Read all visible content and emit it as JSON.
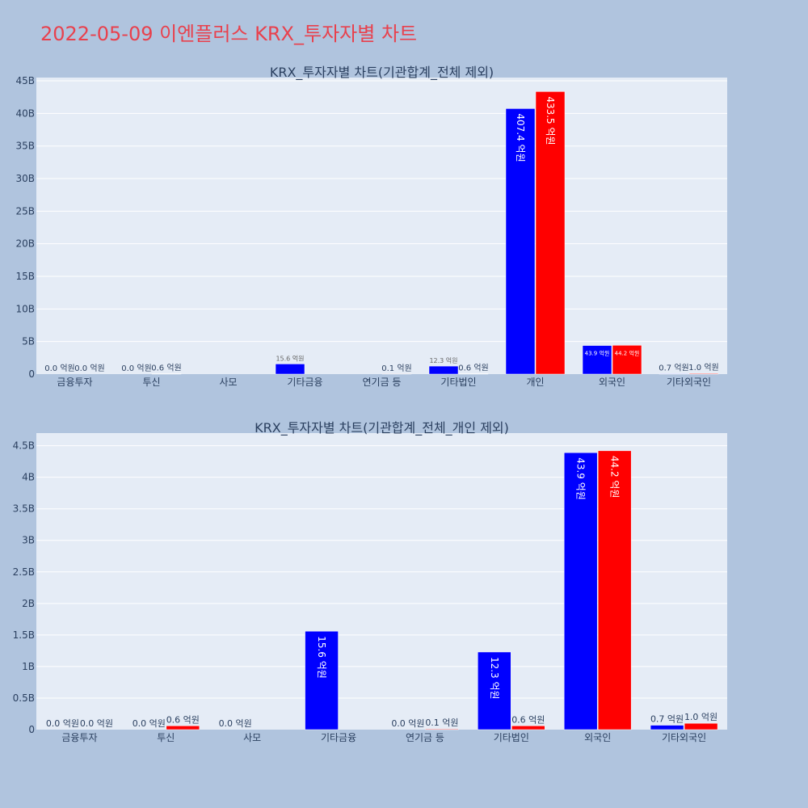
{
  "page_title": "2022-05-09 이엔플러스 KRX_투자자별 차트",
  "colors": {
    "buy": "#0000ff",
    "sell": "#ff0000",
    "page_bg": "#b0c4de",
    "plot_bg": "#e5ecf6",
    "title": "#e8414d"
  },
  "chart_data": [
    {
      "type": "bar",
      "title": "KRX_투자자별 차트(기관합계_전체 제외)",
      "categories": [
        "금융투자",
        "투신",
        "사모",
        "기타금융",
        "연기금 등",
        "기타법인",
        "개인",
        "외국인",
        "기타외국인"
      ],
      "ylim": [
        0,
        45.5
      ],
      "y_ticks": [
        0,
        5,
        10,
        15,
        20,
        25,
        30,
        35,
        40,
        45
      ],
      "y_tick_labels": [
        "0",
        "5B",
        "10B",
        "15B",
        "20B",
        "25B",
        "30B",
        "35B",
        "40B",
        "45B"
      ],
      "series": [
        {
          "values": [
            0.0,
            0.0,
            null,
            1.56,
            0.0,
            1.23,
            40.74,
            4.39,
            0.07
          ],
          "labels": [
            "0.0 억원",
            "0.0 억원",
            "",
            "15.6 억원",
            "",
            "12.3 억원",
            "407.4 억원",
            "43.9 억원",
            "0.7 억원"
          ]
        },
        {
          "values": [
            0.0,
            0.06,
            null,
            null,
            0.01,
            0.06,
            43.35,
            4.42,
            0.1
          ],
          "labels": [
            "0.0 억원",
            "0.6 억원",
            "",
            "",
            "0.1 억원",
            "0.6 억원",
            "433.5 억원",
            "44.2 억원",
            "1.0 억원"
          ]
        }
      ],
      "grid": true
    },
    {
      "type": "bar",
      "title": "KRX_투자자별 차트(기관합계_전체_개인 제외)",
      "categories": [
        "금융투자",
        "투신",
        "사모",
        "기타금융",
        "연기금 등",
        "기타법인",
        "외국인",
        "기타외국인"
      ],
      "ylim": [
        0,
        4.7
      ],
      "y_ticks": [
        0,
        0.5,
        1,
        1.5,
        2,
        2.5,
        3,
        3.5,
        4,
        4.5
      ],
      "y_tick_labels": [
        "0",
        "0.5B",
        "1B",
        "1.5B",
        "2B",
        "2.5B",
        "3B",
        "3.5B",
        "4B",
        "4.5B"
      ],
      "series": [
        {
          "values": [
            0.0,
            0.0,
            0.0,
            1.56,
            0.0,
            1.23,
            4.39,
            0.07
          ],
          "labels": [
            "0.0 억원",
            "0.0 억원",
            "0.0 억원",
            "15.6 억원",
            "0.0 억원",
            "12.3 억원",
            "43.9 억원",
            "0.7 억원"
          ]
        },
        {
          "values": [
            0.0,
            0.06,
            null,
            null,
            0.01,
            0.06,
            4.42,
            0.1
          ],
          "labels": [
            "0.0 억원",
            "0.6 억원",
            "",
            "",
            "0.1 억원",
            "0.6 억원",
            "44.2 억원",
            "1.0 억원"
          ]
        }
      ],
      "grid": true
    }
  ]
}
